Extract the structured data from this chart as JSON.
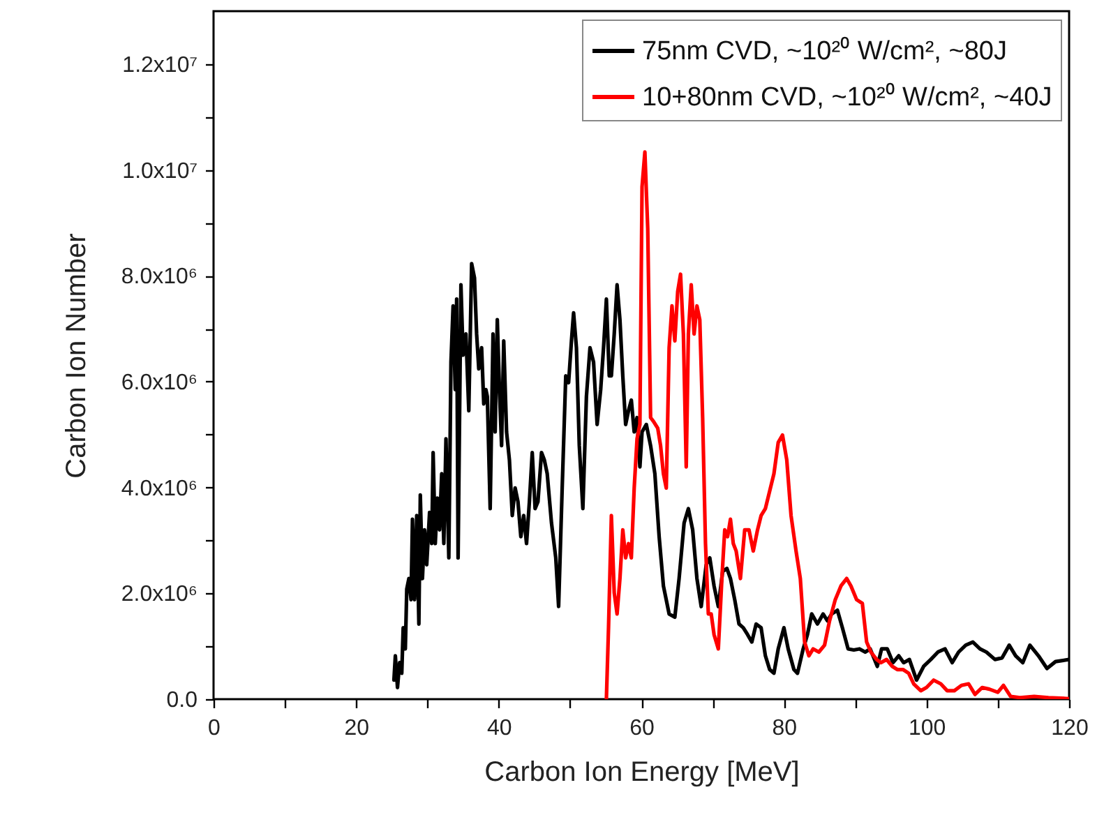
{
  "chart_data": {
    "type": "line",
    "xlabel": "Carbon Ion Energy [MeV]",
    "ylabel": "Carbon Ion Number",
    "xlim": [
      0,
      120
    ],
    "ylim": [
      0,
      13000000
    ],
    "xticks": [
      0,
      {
        "value": 10,
        "label": null
      },
      20,
      {
        "value": 30,
        "label": null
      },
      40,
      {
        "value": 50,
        "label": null
      },
      60,
      {
        "value": 70,
        "label": null
      },
      80,
      {
        "value": 90,
        "label": null
      },
      100,
      {
        "value": 110,
        "label": null
      },
      120
    ],
    "yticks": [
      {
        "value": 0,
        "label": "0.0"
      },
      {
        "value": 1000000,
        "label": null
      },
      {
        "value": 2000000,
        "label": "2.0x10⁶"
      },
      {
        "value": 3000000,
        "label": null
      },
      {
        "value": 4000000,
        "label": "4.0x10⁶"
      },
      {
        "value": 5000000,
        "label": null
      },
      {
        "value": 6000000,
        "label": "6.0x10⁶"
      },
      {
        "value": 7000000,
        "label": null
      },
      {
        "value": 8000000,
        "label": "8.0x10⁶"
      },
      {
        "value": 9000000,
        "label": null
      },
      {
        "value": 10000000,
        "label": "1.0x10⁷"
      },
      {
        "value": 11000000,
        "label": null
      },
      {
        "value": 12000000,
        "label": "1.2x10⁷"
      }
    ],
    "legend": "top right",
    "grid": false,
    "marker": "none",
    "line_style": "solid",
    "series": [
      {
        "name": "75nm CVD, ~10²⁰ W/cm², ~80J",
        "color": "#000000",
        "x": [
          25.3,
          25.5,
          25.8,
          26.1,
          26.4,
          26.6,
          26.9,
          27.1,
          27.4,
          27.7,
          27.9,
          28.2,
          28.5,
          28.8,
          29.0,
          29.3,
          29.6,
          29.9,
          30.3,
          30.6,
          30.8,
          31.1,
          31.4,
          31.7,
          32.0,
          32.3,
          32.6,
          33.0,
          33.3,
          33.6,
          33.9,
          34.1,
          34.3,
          34.7,
          35.0,
          35.4,
          35.8,
          36.2,
          36.6,
          36.9,
          37.2,
          37.6,
          37.9,
          38.2,
          38.4,
          38.8,
          39.2,
          39.5,
          39.8,
          40.1,
          40.4,
          40.7,
          41.1,
          41.5,
          41.9,
          42.3,
          42.7,
          43.1,
          43.5,
          43.9,
          44.3,
          44.7,
          45.1,
          45.5,
          46.0,
          46.4,
          46.8,
          47.4,
          48.0,
          48.4,
          48.9,
          49.4,
          49.8,
          50.2,
          50.5,
          50.9,
          51.3,
          51.8,
          52.3,
          52.8,
          53.3,
          53.8,
          54.3,
          54.7,
          55.1,
          55.5,
          55.8,
          56.2,
          56.6,
          57.0,
          57.4,
          57.8,
          58.2,
          58.6,
          59.0,
          59.4,
          59.8,
          60.1,
          60.7,
          61.3,
          61.9,
          62.5,
          63.1,
          63.9,
          64.7,
          65.3,
          66.0,
          66.6,
          67.2,
          67.8,
          68.4,
          69.1,
          69.6,
          70.2,
          70.8,
          71.4,
          72.0,
          72.5,
          73.1,
          73.7,
          74.3,
          74.9,
          75.5,
          76.1,
          76.8,
          77.4,
          78.0,
          78.6,
          79.2,
          80.0,
          80.6,
          81.4,
          81.9,
          82.7,
          83.3,
          83.9,
          84.7,
          85.5,
          86.1,
          86.7,
          87.5,
          88.2,
          89.0,
          89.8,
          90.6,
          91.4,
          92.1,
          93.1,
          93.7,
          94.5,
          95.3,
          96.1,
          96.8,
          97.6,
          98.6,
          99.6,
          100.6,
          101.6,
          102.6,
          103.6,
          104.5,
          105.5,
          106.5,
          107.5,
          108.4,
          109.6,
          110.6,
          111.6,
          112.5,
          113.5,
          114.5,
          115.7,
          116.9,
          118.1,
          120.0
        ],
        "values": [
          360000,
          820000,
          220000,
          690000,
          490000,
          1350000,
          950000,
          2080000,
          2280000,
          1880000,
          3400000,
          1880000,
          3470000,
          1420000,
          3860000,
          2280000,
          3200000,
          2540000,
          3530000,
          2940000,
          4660000,
          2940000,
          3800000,
          3200000,
          4260000,
          2940000,
          4920000,
          2670000,
          6370000,
          7430000,
          5850000,
          7560000,
          2670000,
          7830000,
          6500000,
          6900000,
          5450000,
          8230000,
          7960000,
          6900000,
          6240000,
          6640000,
          5580000,
          5850000,
          5720000,
          3600000,
          6900000,
          5050000,
          7170000,
          5850000,
          4790000,
          6770000,
          5050000,
          4520000,
          3470000,
          3990000,
          3730000,
          3070000,
          3470000,
          2940000,
          3730000,
          4660000,
          3600000,
          3730000,
          4660000,
          4520000,
          4260000,
          3330000,
          2670000,
          1750000,
          3990000,
          6110000,
          5980000,
          6770000,
          7300000,
          6640000,
          4790000,
          3600000,
          5720000,
          6640000,
          6370000,
          5190000,
          5850000,
          6640000,
          7560000,
          6110000,
          6110000,
          6900000,
          7830000,
          7170000,
          6110000,
          5190000,
          5450000,
          5650000,
          5050000,
          5320000,
          4390000,
          5050000,
          5190000,
          4790000,
          4260000,
          3070000,
          2140000,
          1610000,
          1550000,
          2280000,
          3330000,
          3600000,
          3200000,
          2280000,
          1750000,
          2540000,
          2670000,
          2140000,
          1750000,
          2410000,
          2470000,
          2280000,
          1880000,
          1420000,
          1350000,
          1220000,
          1080000,
          1420000,
          1350000,
          820000,
          560000,
          490000,
          950000,
          1350000,
          950000,
          560000,
          490000,
          950000,
          1220000,
          1610000,
          1420000,
          1610000,
          1480000,
          1610000,
          1680000,
          1350000,
          950000,
          930000,
          950000,
          890000,
          950000,
          620000,
          950000,
          950000,
          690000,
          820000,
          690000,
          750000,
          360000,
          620000,
          750000,
          890000,
          950000,
          690000,
          890000,
          1020000,
          1080000,
          950000,
          890000,
          750000,
          780000,
          1020000,
          820000,
          690000,
          1020000,
          820000,
          580000,
          710000,
          750000
        ]
      },
      {
        "name": "10+80nm CVD, ~10²⁰ W/cm², ~40J",
        "color": "#ff0000",
        "x": [
          55.1,
          55.4,
          55.8,
          56.2,
          56.6,
          57.0,
          57.4,
          57.8,
          58.2,
          58.6,
          59.0,
          59.4,
          59.8,
          60.1,
          60.5,
          60.9,
          61.3,
          61.7,
          62.3,
          62.7,
          63.1,
          63.5,
          63.9,
          64.3,
          64.7,
          65.1,
          65.5,
          65.9,
          66.3,
          66.6,
          67.0,
          67.4,
          67.8,
          68.2,
          68.6,
          69.0,
          69.4,
          69.8,
          70.2,
          70.8,
          71.3,
          71.7,
          72.1,
          72.5,
          72.9,
          73.3,
          73.9,
          74.5,
          75.1,
          75.7,
          76.3,
          76.8,
          77.4,
          78.0,
          78.6,
          79.2,
          79.8,
          80.4,
          81.0,
          81.7,
          82.3,
          82.9,
          83.5,
          84.1,
          84.9,
          85.7,
          86.4,
          87.2,
          88.0,
          88.8,
          89.4,
          90.2,
          91.0,
          91.6,
          92.2,
          93.0,
          93.6,
          94.4,
          95.2,
          95.9,
          96.7,
          97.5,
          98.2,
          99.2,
          100.0,
          101.0,
          102.0,
          102.9,
          103.9,
          104.9,
          105.9,
          106.8,
          107.8,
          108.8,
          110.0,
          110.8,
          111.8,
          113.1,
          115.1,
          117.1,
          120.0
        ],
        "values": [
          0,
          1350000,
          3470000,
          2010000,
          1610000,
          2280000,
          3200000,
          2670000,
          2940000,
          2670000,
          3990000,
          4920000,
          5190000,
          9680000,
          10340000,
          8890000,
          5320000,
          5250000,
          5120000,
          4790000,
          4260000,
          3990000,
          6640000,
          7430000,
          6770000,
          7700000,
          8030000,
          6900000,
          4390000,
          6900000,
          7830000,
          6900000,
          7430000,
          7170000,
          5320000,
          2940000,
          1610000,
          1610000,
          1220000,
          950000,
          2280000,
          3200000,
          3070000,
          3400000,
          2940000,
          2800000,
          2280000,
          3200000,
          3200000,
          2800000,
          3200000,
          3470000,
          3600000,
          3930000,
          4260000,
          4850000,
          4990000,
          4520000,
          3470000,
          2800000,
          2280000,
          1080000,
          820000,
          950000,
          890000,
          1020000,
          1480000,
          1880000,
          2140000,
          2280000,
          2140000,
          1880000,
          1810000,
          1080000,
          890000,
          750000,
          690000,
          750000,
          620000,
          560000,
          560000,
          490000,
          290000,
          160000,
          220000,
          360000,
          290000,
          160000,
          160000,
          260000,
          290000,
          90000,
          220000,
          190000,
          130000,
          260000,
          50000,
          30000,
          50000,
          30000,
          10000
        ]
      }
    ]
  }
}
